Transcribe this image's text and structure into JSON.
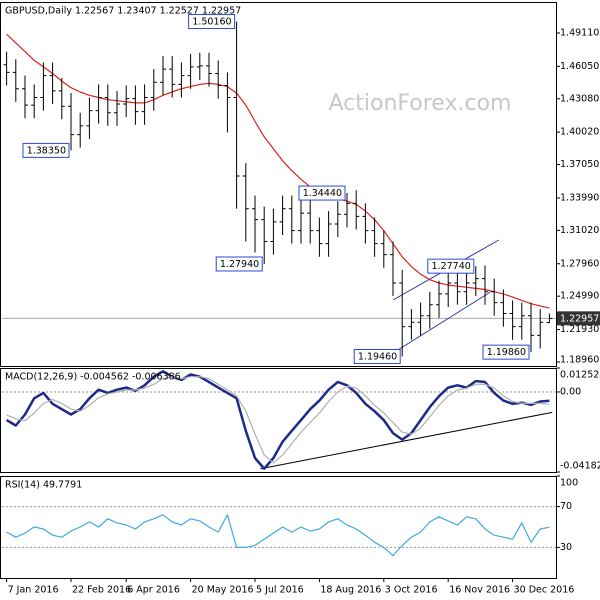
{
  "chart_data": [
    {
      "type": "ohlc",
      "title": "GBPUSD,Daily  1.22567 1.23407 1.22527 1.22957",
      "watermark": "ActionForex.com",
      "color": "#000000",
      "open": [
        1.462,
        1.455,
        1.44,
        1.425,
        1.432,
        1.452,
        1.438,
        1.424,
        1.398,
        1.406,
        1.42,
        1.432,
        1.418,
        1.426,
        1.431,
        1.419,
        1.432,
        1.446,
        1.458,
        1.444,
        1.452,
        1.46,
        1.461,
        1.454,
        1.443,
        1.432,
        1.36,
        1.33,
        1.32,
        1.3,
        1.318,
        1.33,
        1.31,
        1.326,
        1.31,
        1.298,
        1.316,
        1.325,
        1.335,
        1.323,
        1.31,
        1.298,
        1.288,
        1.262,
        1.222,
        1.226,
        1.232,
        1.242,
        1.252,
        1.262,
        1.254,
        1.262,
        1.266,
        1.254,
        1.244,
        1.234,
        1.222,
        1.232,
        1.214,
        1.22567
      ],
      "high": [
        1.474,
        1.467,
        1.452,
        1.444,
        1.464,
        1.464,
        1.45,
        1.436,
        1.418,
        1.432,
        1.444,
        1.444,
        1.438,
        1.443,
        1.443,
        1.444,
        1.458,
        1.47,
        1.47,
        1.464,
        1.472,
        1.473,
        1.473,
        1.466,
        1.455,
        1.5016,
        1.372,
        1.342,
        1.332,
        1.33,
        1.342,
        1.342,
        1.338,
        1.338,
        1.322,
        1.328,
        1.337,
        1.3444,
        1.347,
        1.335,
        1.322,
        1.31,
        1.3,
        1.274,
        1.238,
        1.244,
        1.254,
        1.264,
        1.274,
        1.274,
        1.274,
        1.2774,
        1.278,
        1.266,
        1.256,
        1.246,
        1.244,
        1.244,
        1.238,
        1.23407
      ],
      "low": [
        1.443,
        1.428,
        1.413,
        1.413,
        1.42,
        1.426,
        1.412,
        1.3835,
        1.386,
        1.394,
        1.408,
        1.406,
        1.406,
        1.414,
        1.407,
        1.407,
        1.42,
        1.434,
        1.432,
        1.432,
        1.44,
        1.448,
        1.442,
        1.431,
        1.4,
        1.33,
        1.3,
        1.29,
        1.2794,
        1.288,
        1.306,
        1.298,
        1.298,
        1.298,
        1.286,
        1.286,
        1.304,
        1.313,
        1.311,
        1.298,
        1.286,
        1.276,
        1.25,
        1.1946,
        1.21,
        1.214,
        1.22,
        1.23,
        1.24,
        1.242,
        1.242,
        1.25,
        1.242,
        1.232,
        1.222,
        1.21,
        1.21,
        1.1986,
        1.202,
        1.22527
      ],
      "close": [
        1.455,
        1.44,
        1.425,
        1.432,
        1.452,
        1.438,
        1.424,
        1.398,
        1.406,
        1.42,
        1.432,
        1.418,
        1.426,
        1.431,
        1.419,
        1.432,
        1.446,
        1.458,
        1.444,
        1.452,
        1.46,
        1.461,
        1.454,
        1.443,
        1.432,
        1.36,
        1.33,
        1.32,
        1.3,
        1.318,
        1.33,
        1.31,
        1.326,
        1.31,
        1.298,
        1.316,
        1.325,
        1.335,
        1.323,
        1.31,
        1.298,
        1.288,
        1.262,
        1.222,
        1.226,
        1.232,
        1.242,
        1.252,
        1.262,
        1.254,
        1.262,
        1.266,
        1.254,
        1.244,
        1.234,
        1.222,
        1.232,
        1.214,
        1.226,
        1.22957
      ],
      "series": [
        {
          "color": "#d9251d",
          "values": [
            1.49,
            1.482,
            1.474,
            1.466,
            1.46,
            1.454,
            1.447,
            1.441,
            1.437,
            1.434,
            1.432,
            1.43,
            1.429,
            1.428,
            1.427,
            1.427,
            1.43,
            1.434,
            1.437,
            1.44,
            1.442,
            1.444,
            1.445,
            1.444,
            1.442,
            1.436,
            1.425,
            1.41,
            1.396,
            1.385,
            1.374,
            1.365,
            1.357,
            1.35,
            1.345,
            1.341,
            1.339,
            1.337,
            1.334,
            1.328,
            1.32,
            1.31,
            1.298,
            1.286,
            1.277,
            1.27,
            1.265,
            1.262,
            1.26,
            1.259,
            1.258,
            1.257,
            1.256,
            1.254,
            1.252,
            1.249,
            1.246,
            1.243,
            1.241,
            1.239
          ]
        }
      ],
      "trendlines": [
        {
          "color": "#2233aa",
          "x": [
            42.5,
            53.1
          ],
          "values": [
            1.1978,
            1.2537
          ]
        },
        {
          "color": "#2233aa",
          "x": [
            42.5,
            54
          ],
          "values": [
            1.2464,
            1.3014
          ]
        }
      ],
      "last_price": 1.22957,
      "last_price_color": "#333333",
      "annotation_color": "#2a4bd7",
      "annotations": [
        {
          "x": 25.5,
          "value": 1.5016,
          "label": "1.50160"
        },
        {
          "x": 7.5,
          "value": 1.3835,
          "label": "1.38350"
        },
        {
          "x": 28.5,
          "value": 1.2794,
          "label": "1.27940"
        },
        {
          "x": 37.5,
          "value": 1.3444,
          "label": "1.34440"
        },
        {
          "x": 51.5,
          "value": 1.2774,
          "label": "1.27740"
        },
        {
          "x": 43.5,
          "value": 1.1946,
          "label": "1.19460"
        },
        {
          "x": 57.5,
          "value": 1.1986,
          "label": "1.19860"
        }
      ],
      "xlim": [
        0,
        60
      ],
      "ylim": [
        1.1859,
        1.5195
      ],
      "grid": false,
      "yticks": [
        {
          "value": 1.4911,
          "label": "1.49110"
        },
        {
          "value": 1.4605,
          "label": "1.46050"
        },
        {
          "value": 1.4308,
          "label": "1.43080"
        },
        {
          "value": 1.4002,
          "label": "1.40020"
        },
        {
          "value": 1.3705,
          "label": "1.37050"
        },
        {
          "value": 1.3399,
          "label": "1.33990"
        },
        {
          "value": 1.3102,
          "label": "1.31020"
        },
        {
          "value": 1.2796,
          "label": "1.27960"
        },
        {
          "value": 1.2499,
          "label": "1.24990"
        },
        {
          "value": 1.2193,
          "label": "1.21930"
        },
        {
          "value": 1.1896,
          "label": "1.18960"
        }
      ]
    },
    {
      "type": "line",
      "title": "MACD(12,26,9) -0.004562 -0.006386",
      "series": [
        {
          "color": "#1e2a8a",
          "values": [
            -0.0147,
            -0.0175,
            -0.0118,
            -0.0033,
            -0.0005,
            -0.0062,
            -0.009,
            -0.0118,
            -0.009,
            -0.0033,
            0.0012,
            -0.0005,
            0.0012,
            0.0023,
            0.0006,
            0.0035,
            0.008,
            0.0108,
            0.008,
            0.0063,
            0.0091,
            0.008,
            0.0052,
            0.0023,
            -0.0005,
            -0.0033,
            -0.0203,
            -0.0345,
            -0.0401,
            -0.0345,
            -0.026,
            -0.0203,
            -0.0147,
            -0.009,
            -0.0045,
            0.0012,
            0.0052,
            0.0035,
            -0.0005,
            -0.0062,
            -0.0101,
            -0.0147,
            -0.0215,
            -0.0249,
            -0.0215,
            -0.0147,
            -0.0079,
            -0.0022,
            0.0023,
            0.0035,
            0.0023,
            0.0057,
            0.0052,
            -0.0005,
            -0.0045,
            -0.0062,
            -0.0056,
            -0.0067,
            -0.005,
            -0.0046
          ]
        },
        {
          "color": "#b0b0b0",
          "values": [
            -0.012,
            -0.014,
            -0.015,
            -0.011,
            -0.006,
            -0.004,
            -0.006,
            -0.009,
            -0.01,
            -0.007,
            -0.003,
            -0.001,
            0,
            0.001,
            0.001,
            0.002,
            0.004,
            0.007,
            0.008,
            0.007,
            0.008,
            0.008,
            0.007,
            0.004,
            0.001,
            -0.002,
            -0.01,
            -0.022,
            -0.033,
            -0.037,
            -0.033,
            -0.027,
            -0.021,
            -0.016,
            -0.011,
            -0.005,
            0,
            0.003,
            0.002,
            -0.002,
            -0.007,
            -0.011,
            -0.016,
            -0.021,
            -0.022,
            -0.019,
            -0.013,
            -0.007,
            -0.002,
            0.001,
            0.002,
            0.004,
            0.004,
            0.002,
            -0.002,
            -0.005,
            -0.006,
            -0.006,
            -0.006,
            -0.0064
          ]
        }
      ],
      "trendlines": [
        {
          "color": "#000000",
          "x": [
            28.1,
            59.8
          ],
          "values": [
            -0.0401,
            -0.0107
          ]
        }
      ],
      "xlim": [
        0,
        60
      ],
      "ylim": [
        -0.041823,
        0.012522
      ],
      "grid": true,
      "yticks": [
        0.012522,
        {
          "value": 0,
          "label": "0.00"
        },
        -0.041823
      ]
    },
    {
      "type": "line",
      "title": "RSI(14) 49.7791",
      "series": [
        {
          "color": "#3fa9e0",
          "values": [
            45,
            40,
            44,
            50,
            48,
            42,
            40,
            46,
            50,
            55,
            50,
            58,
            54,
            52,
            48,
            55,
            58,
            62,
            55,
            52,
            58,
            56,
            50,
            45,
            62,
            30,
            30,
            32,
            38,
            44,
            50,
            45,
            50,
            46,
            48,
            55,
            58,
            52,
            48,
            42,
            35,
            30,
            22,
            32,
            40,
            45,
            55,
            60,
            56,
            52,
            60,
            58,
            48,
            42,
            40,
            38,
            54,
            35,
            48,
            49.7791
          ]
        }
      ],
      "xlim": [
        0,
        60
      ],
      "ylim": [
        0,
        100
      ],
      "grid": true,
      "yticks": [
        30,
        70,
        100
      ],
      "xticks": [
        {
          "value": 0.5,
          "label": "7 Jan 2016"
        },
        {
          "value": 7.5,
          "label": "22 Feb 2016"
        },
        {
          "value": 13.5,
          "label": "6 Apr 2016"
        },
        {
          "value": 20.5,
          "label": "20 May 2016"
        },
        {
          "value": 27.5,
          "label": "5 Jul 2016"
        },
        {
          "value": 34.5,
          "label": "18 Aug 2016"
        },
        {
          "value": 41.5,
          "label": "3 Oct 2016"
        },
        {
          "value": 48.5,
          "label": "16 Nov 2016"
        },
        {
          "value": 55.5,
          "label": "30 Dec 2016"
        }
      ]
    }
  ]
}
